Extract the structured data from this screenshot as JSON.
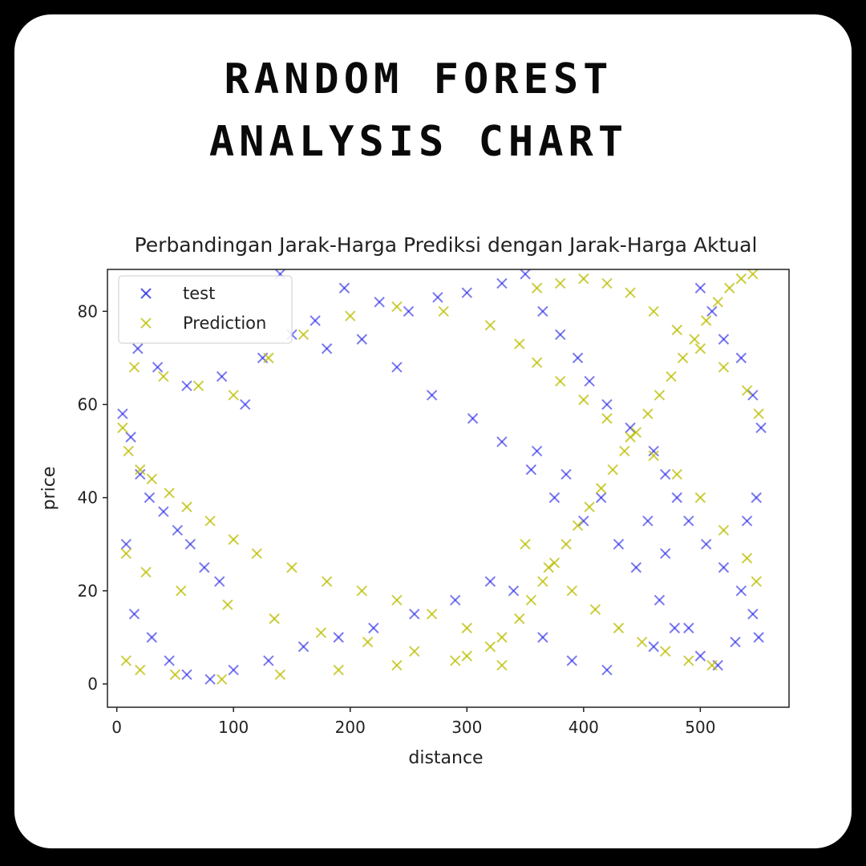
{
  "header": {
    "title_line1": "RANDOM FOREST",
    "title_line2": "ANALYSIS CHART"
  },
  "colors": {
    "background": "#000000",
    "card": "#ffffff",
    "test": "#1f1fe6",
    "prediction": "#bcbd00"
  },
  "chart_data": {
    "type": "scatter",
    "title": "Perbandingan Jarak-Harga Prediksi dengan Jarak-Harga Aktual",
    "xlabel": "distance",
    "ylabel": "price",
    "xlim": [
      -8,
      576
    ],
    "ylim": [
      -5,
      89
    ],
    "xticks": [
      0,
      100,
      200,
      300,
      400,
      500
    ],
    "yticks": [
      0,
      20,
      40,
      60,
      80
    ],
    "grid": false,
    "legend": "upper-left",
    "marker": "x",
    "series": [
      {
        "name": "test",
        "color": "#1f1fe6",
        "points": [
          [
            5,
            58
          ],
          [
            12,
            53
          ],
          [
            20,
            45
          ],
          [
            28,
            40
          ],
          [
            40,
            37
          ],
          [
            52,
            33
          ],
          [
            63,
            30
          ],
          [
            75,
            25
          ],
          [
            88,
            22
          ],
          [
            110,
            60
          ],
          [
            125,
            70
          ],
          [
            150,
            75
          ],
          [
            170,
            78
          ],
          [
            195,
            85
          ],
          [
            225,
            82
          ],
          [
            250,
            80
          ],
          [
            275,
            83
          ],
          [
            300,
            84
          ],
          [
            330,
            86
          ],
          [
            350,
            88
          ],
          [
            365,
            80
          ],
          [
            380,
            75
          ],
          [
            395,
            70
          ],
          [
            405,
            65
          ],
          [
            420,
            60
          ],
          [
            440,
            55
          ],
          [
            460,
            50
          ],
          [
            470,
            45
          ],
          [
            480,
            40
          ],
          [
            490,
            35
          ],
          [
            505,
            30
          ],
          [
            520,
            25
          ],
          [
            535,
            20
          ],
          [
            545,
            15
          ],
          [
            550,
            10
          ],
          [
            360,
            50
          ],
          [
            385,
            45
          ],
          [
            415,
            40
          ],
          [
            455,
            35
          ],
          [
            470,
            28
          ],
          [
            340,
            20
          ],
          [
            365,
            10
          ],
          [
            390,
            5
          ],
          [
            420,
            3
          ],
          [
            460,
            8
          ],
          [
            490,
            12
          ],
          [
            15,
            15
          ],
          [
            30,
            10
          ],
          [
            45,
            5
          ],
          [
            60,
            2
          ],
          [
            80,
            1
          ],
          [
            100,
            3
          ],
          [
            130,
            5
          ],
          [
            160,
            8
          ],
          [
            190,
            10
          ],
          [
            220,
            12
          ],
          [
            255,
            15
          ],
          [
            290,
            18
          ],
          [
            320,
            22
          ],
          [
            8,
            30
          ],
          [
            18,
            72
          ],
          [
            35,
            68
          ],
          [
            60,
            64
          ],
          [
            90,
            66
          ],
          [
            140,
            88
          ],
          [
            180,
            72
          ],
          [
            210,
            74
          ],
          [
            240,
            68
          ],
          [
            270,
            62
          ],
          [
            305,
            57
          ],
          [
            330,
            52
          ],
          [
            355,
            46
          ],
          [
            375,
            40
          ],
          [
            400,
            35
          ],
          [
            430,
            30
          ],
          [
            445,
            25
          ],
          [
            465,
            18
          ],
          [
            478,
            12
          ],
          [
            500,
            6
          ],
          [
            515,
            4
          ],
          [
            530,
            9
          ],
          [
            540,
            35
          ],
          [
            548,
            40
          ],
          [
            552,
            55
          ],
          [
            545,
            62
          ],
          [
            535,
            70
          ],
          [
            520,
            74
          ],
          [
            510,
            80
          ],
          [
            500,
            85
          ]
        ]
      },
      {
        "name": "Prediction",
        "color": "#bcbd00",
        "points": [
          [
            5,
            55
          ],
          [
            10,
            50
          ],
          [
            20,
            46
          ],
          [
            30,
            44
          ],
          [
            45,
            41
          ],
          [
            60,
            38
          ],
          [
            80,
            35
          ],
          [
            100,
            31
          ],
          [
            120,
            28
          ],
          [
            150,
            25
          ],
          [
            180,
            22
          ],
          [
            210,
            20
          ],
          [
            240,
            18
          ],
          [
            270,
            15
          ],
          [
            300,
            12
          ],
          [
            320,
            8
          ],
          [
            330,
            4
          ],
          [
            15,
            68
          ],
          [
            40,
            66
          ],
          [
            70,
            64
          ],
          [
            100,
            62
          ],
          [
            130,
            70
          ],
          [
            160,
            75
          ],
          [
            200,
            79
          ],
          [
            240,
            81
          ],
          [
            280,
            80
          ],
          [
            320,
            77
          ],
          [
            345,
            73
          ],
          [
            360,
            69
          ],
          [
            380,
            65
          ],
          [
            400,
            61
          ],
          [
            420,
            57
          ],
          [
            440,
            53
          ],
          [
            460,
            49
          ],
          [
            480,
            45
          ],
          [
            500,
            40
          ],
          [
            520,
            33
          ],
          [
            540,
            27
          ],
          [
            548,
            22
          ],
          [
            360,
            85
          ],
          [
            380,
            86
          ],
          [
            400,
            87
          ],
          [
            420,
            86
          ],
          [
            440,
            84
          ],
          [
            460,
            80
          ],
          [
            480,
            76
          ],
          [
            500,
            72
          ],
          [
            520,
            68
          ],
          [
            540,
            63
          ],
          [
            550,
            58
          ],
          [
            350,
            30
          ],
          [
            370,
            25
          ],
          [
            390,
            20
          ],
          [
            410,
            16
          ],
          [
            430,
            12
          ],
          [
            450,
            9
          ],
          [
            470,
            7
          ],
          [
            490,
            5
          ],
          [
            510,
            4
          ],
          [
            8,
            5
          ],
          [
            20,
            3
          ],
          [
            50,
            2
          ],
          [
            90,
            1
          ],
          [
            140,
            2
          ],
          [
            190,
            3
          ],
          [
            240,
            4
          ],
          [
            290,
            5
          ],
          [
            8,
            28
          ],
          [
            25,
            24
          ],
          [
            55,
            20
          ],
          [
            95,
            17
          ],
          [
            135,
            14
          ],
          [
            175,
            11
          ],
          [
            215,
            9
          ],
          [
            255,
            7
          ],
          [
            300,
            6
          ],
          [
            330,
            10
          ],
          [
            345,
            14
          ],
          [
            355,
            18
          ],
          [
            365,
            22
          ],
          [
            375,
            26
          ],
          [
            385,
            30
          ],
          [
            395,
            34
          ],
          [
            405,
            38
          ],
          [
            415,
            42
          ],
          [
            425,
            46
          ],
          [
            435,
            50
          ],
          [
            445,
            54
          ],
          [
            455,
            58
          ],
          [
            465,
            62
          ],
          [
            475,
            66
          ],
          [
            485,
            70
          ],
          [
            495,
            74
          ],
          [
            505,
            78
          ],
          [
            515,
            82
          ],
          [
            525,
            85
          ],
          [
            535,
            87
          ],
          [
            545,
            88
          ]
        ]
      }
    ]
  }
}
